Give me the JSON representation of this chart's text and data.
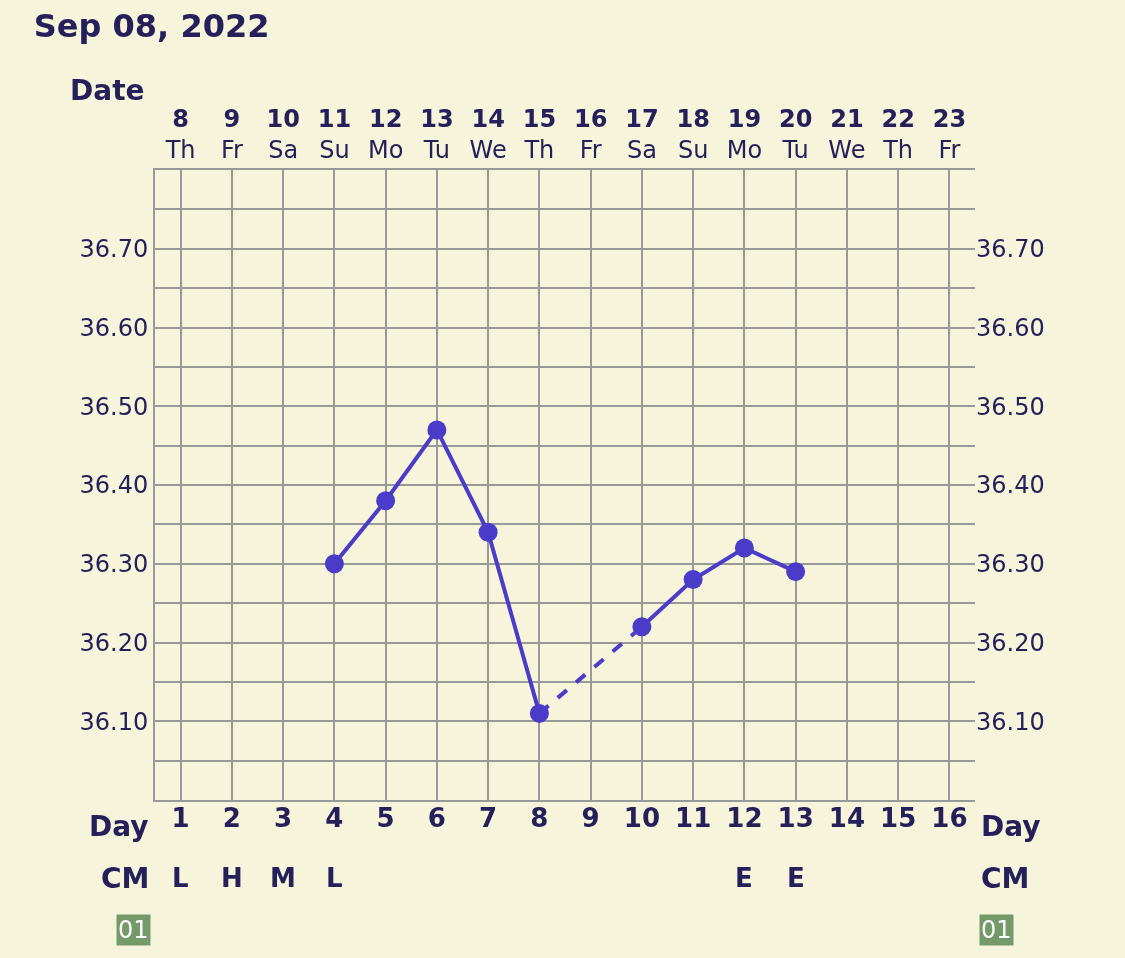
{
  "chart_data": {
    "type": "line",
    "title": "Sep 08, 2022",
    "xlabel": "Date",
    "x2label": "Day",
    "categories": [
      "8\nTh",
      "9\nFr",
      "10\nSa",
      "11\nSu",
      "12\nMo",
      "13\nTu",
      "14\nWe",
      "15\nTh",
      "16\nFr",
      "17\nSa",
      "18\nSu",
      "19\nMo",
      "20\nTu",
      "21\nWe",
      "22\nTh",
      "23\nFr"
    ],
    "series": [
      {
        "color": "#4a3cc8",
        "values": [
          null,
          null,
          null,
          36.3,
          36.38,
          36.47,
          36.34,
          36.11,
          null,
          36.22,
          36.28,
          36.32,
          36.29,
          null,
          null,
          null
        ],
        "marker": "circle",
        "line_style": "solid"
      },
      {
        "color": "#4b3dc9",
        "values": [
          null,
          null,
          null,
          null,
          null,
          null,
          null,
          36.11,
          null,
          36.22,
          null,
          null,
          null,
          null,
          null,
          null
        ],
        "marker": "none",
        "line_style": "dashed"
      }
    ],
    "ylim": [
      36.0,
      36.8
    ],
    "yticks": [
      {
        "value": 36.05,
        "label": null
      },
      {
        "value": 36.1,
        "label": "36.10"
      },
      {
        "value": 36.15,
        "label": null
      },
      {
        "value": 36.2,
        "label": "36.20"
      },
      {
        "value": 36.25,
        "label": null
      },
      {
        "value": 36.3,
        "label": "36.30"
      },
      {
        "value": 36.35,
        "label": null
      },
      {
        "value": 36.4,
        "label": "36.40"
      },
      {
        "value": 36.45,
        "label": null
      },
      {
        "value": 36.5,
        "label": "36.50"
      },
      {
        "value": 36.55,
        "label": null
      },
      {
        "value": 36.6,
        "label": "36.60"
      },
      {
        "value": 36.65,
        "label": null
      },
      {
        "value": 36.7,
        "label": "36.70"
      },
      {
        "value": 36.75,
        "label": null
      }
    ],
    "y2lim": [
      36.0,
      36.8
    ],
    "y2ticks": [
      {
        "value": 36.1,
        "label": "36.10"
      },
      {
        "value": 36.2,
        "label": "36.20"
      },
      {
        "value": 36.3,
        "label": "36.30"
      },
      {
        "value": 36.4,
        "label": "36.40"
      },
      {
        "value": 36.5,
        "label": "36.50"
      },
      {
        "value": 36.6,
        "label": "36.60"
      },
      {
        "value": 36.7,
        "label": "36.70"
      }
    ],
    "x2lim": [
      0.5,
      16.5
    ],
    "x2ticks": [
      1,
      2,
      3,
      4,
      5,
      6,
      7,
      8,
      9,
      10,
      11,
      12,
      13,
      14,
      15,
      16
    ],
    "annotations": [
      "CM",
      "CM",
      "01",
      "01",
      "L",
      "H",
      "M",
      "L",
      "E",
      "E"
    ],
    "grid": true,
    "legend": false
  }
}
